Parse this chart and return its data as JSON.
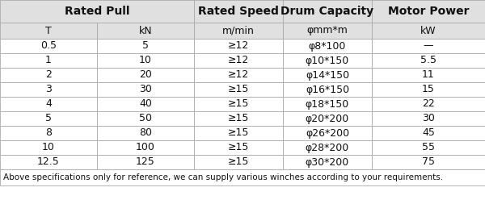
{
  "header_row1": [
    "Rated Pull",
    "Rated Speed",
    "Drum Capacity",
    "Motor Power"
  ],
  "header_row2": [
    "T",
    "kN",
    "m/min",
    "φmm*m",
    "kW"
  ],
  "rows": [
    [
      "0.5",
      "5",
      "≥12",
      "φ8*100",
      "—"
    ],
    [
      "1",
      "10",
      "≥12",
      "φ10*150",
      "5.5"
    ],
    [
      "2",
      "20",
      "≥12",
      "φ14*150",
      "11"
    ],
    [
      "3",
      "30",
      "≥15",
      "φ16*150",
      "15"
    ],
    [
      "4",
      "40",
      "≥15",
      "φ18*150",
      "22"
    ],
    [
      "5",
      "50",
      "≥15",
      "φ20*200",
      "30"
    ],
    [
      "8",
      "80",
      "≥15",
      "φ26*200",
      "45"
    ],
    [
      "10",
      "100",
      "≥15",
      "φ28*200",
      "55"
    ],
    [
      "12.5",
      "125",
      "≥15",
      "φ30*200",
      "75"
    ]
  ],
  "footer": "Above specifications only for reference, we can supply various winches according to your requirements.",
  "bg_header": "#e0e0e0",
  "bg_white": "#ffffff",
  "border_color": "#aaaaaa",
  "text_color": "#111111",
  "figsize": [
    6.0,
    2.48
  ],
  "dpi": 100
}
